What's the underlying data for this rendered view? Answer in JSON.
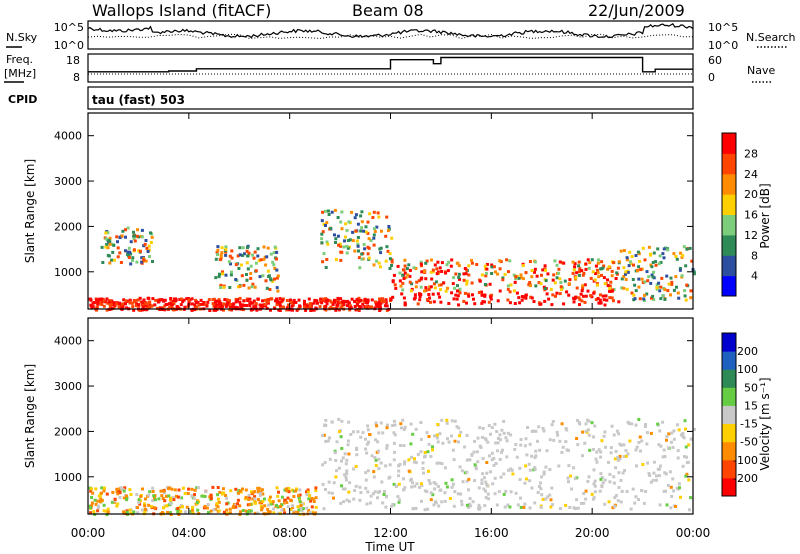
{
  "header": {
    "station": "Wallops Island (fitACF)",
    "beam": "Beam 08",
    "date": "22/Jun/2009"
  },
  "sky_panel": {
    "left_label": "N.Sky",
    "right_label": "N.Search",
    "left_ticks": [
      "10^5",
      "10^0"
    ],
    "right_ticks": [
      "10^5",
      "10^0"
    ]
  },
  "freq_panel": {
    "left_label_1": "Freq.",
    "left_label_2": "[MHz]",
    "right_label": "Nave",
    "left_ticks": [
      "18",
      "8"
    ],
    "right_ticks": [
      "60",
      "0"
    ]
  },
  "cpid_panel": {
    "label": "CPID",
    "value": "tau (fast) 503"
  },
  "power_panel": {
    "ylabel": "Slant Range [km]",
    "colorbar_label": "Power [dB]",
    "colorbar_ticks": [
      "4",
      "8",
      "12",
      "16",
      "20",
      "24",
      "28"
    ],
    "colorbar_colors": [
      "#0000ff",
      "#2e4fa0",
      "#2e8b57",
      "#7ccd7c",
      "#ffd000",
      "#ff8c00",
      "#ff4500",
      "#ff0000"
    ]
  },
  "velocity_panel": {
    "ylabel": "Slant Range [km]",
    "colorbar_label": "Velocity [m s⁻¹]",
    "colorbar_ticks": [
      "-200",
      "-100",
      "-50",
      "-15",
      "15",
      "50",
      "100",
      "200"
    ],
    "colorbar_colors": [
      "#ff0000",
      "#ff4500",
      "#ff8c00",
      "#ffd000",
      "#c8c8c8",
      "#66cc44",
      "#2e8b57",
      "#1e60c0",
      "#0000cc"
    ]
  },
  "x_axis": {
    "label": "Time UT",
    "ticks": [
      "00:00",
      "04:00",
      "08:00",
      "12:00",
      "16:00",
      "20:00",
      "00:00"
    ]
  },
  "chart_data": {
    "type": "heatmap",
    "title": "Wallops Island (fitACF)",
    "subtitle": "Beam 08",
    "xlabel": "Time UT",
    "ylabel": "Slant Range [km]",
    "x_range_hours": [
      0,
      24
    ],
    "ylim": [
      180,
      4500
    ],
    "y_ticks": [
      1000,
      2000,
      3000,
      4000
    ],
    "frequency_steps": [
      {
        "start_hour": 0,
        "end_hour": 3.2,
        "freq_mhz": 10.8
      },
      {
        "start_hour": 3.2,
        "end_hour": 4.3,
        "freq_mhz": 11.2
      },
      {
        "start_hour": 4.3,
        "end_hour": 12.0,
        "freq_mhz": 12.2
      },
      {
        "start_hour": 12.0,
        "end_hour": 13.7,
        "freq_mhz": 16.3
      },
      {
        "start_hour": 13.7,
        "end_hour": 14.0,
        "freq_mhz": 14.5
      },
      {
        "start_hour": 14.0,
        "end_hour": 22.0,
        "freq_mhz": 17.3
      },
      {
        "start_hour": 22.0,
        "end_hour": 22.5,
        "freq_mhz": 10.8
      },
      {
        "start_hour": 22.5,
        "end_hour": 24.0,
        "freq_mhz": 12.0
      }
    ],
    "scatter_regions": [
      {
        "panel": "power",
        "start_hour": 0.0,
        "end_hour": 12.0,
        "min_km": 180,
        "max_km": 450,
        "level": "high"
      },
      {
        "panel": "power",
        "start_hour": 0.5,
        "end_hour": 2.5,
        "min_km": 1200,
        "max_km": 2000,
        "level": "medium"
      },
      {
        "panel": "power",
        "start_hour": 5.0,
        "end_hour": 7.5,
        "min_km": 600,
        "max_km": 1600,
        "level": "medium"
      },
      {
        "panel": "power",
        "start_hour": 9.2,
        "end_hour": 12.0,
        "min_km": 1100,
        "max_km": 2400,
        "level": "medium"
      },
      {
        "panel": "power",
        "start_hour": 12.0,
        "end_hour": 21.0,
        "min_km": 300,
        "max_km": 1300,
        "level": "high"
      },
      {
        "panel": "power",
        "start_hour": 21.0,
        "end_hour": 24.0,
        "min_km": 400,
        "max_km": 1600,
        "level": "medium"
      },
      {
        "panel": "velocity",
        "start_hour": 0.0,
        "end_hour": 9.0,
        "min_km": 200,
        "max_km": 800,
        "level": "negative"
      },
      {
        "panel": "velocity",
        "start_hour": 9.2,
        "end_hour": 24.0,
        "min_km": 300,
        "max_km": 2300,
        "level": "near-zero"
      }
    ]
  }
}
